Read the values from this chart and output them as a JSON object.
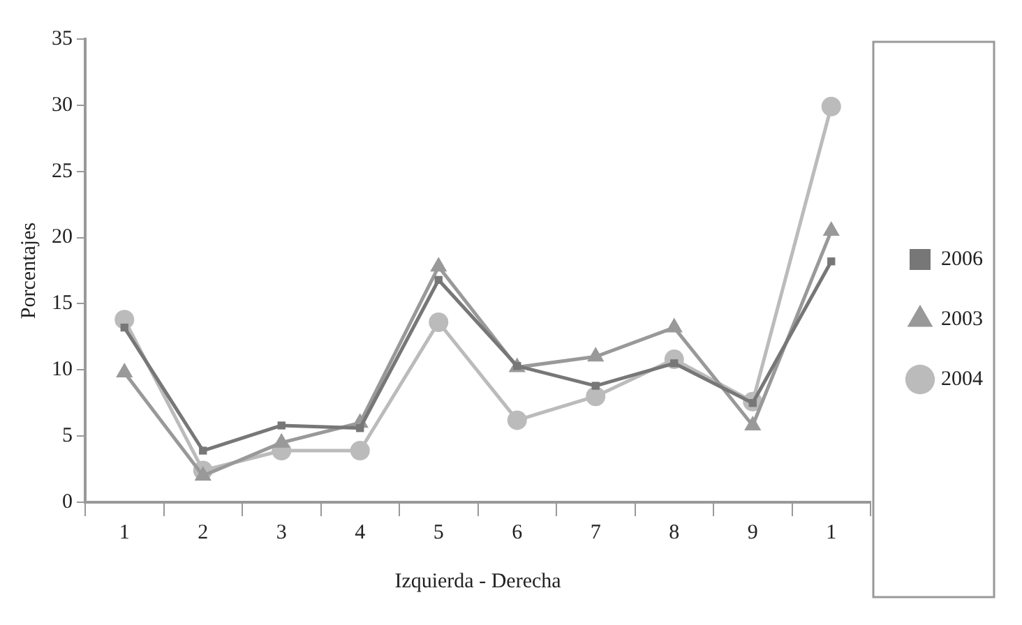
{
  "chart_data": {
    "type": "line",
    "xlabel": "Izquierda - Derecha",
    "ylabel": "Porcentajes",
    "categories": [
      "1",
      "2",
      "3",
      "4",
      "5",
      "6",
      "7",
      "8",
      "9",
      "1"
    ],
    "series": [
      {
        "name": "2003",
        "color": "#999999",
        "marker": "triangle",
        "values": [
          9.8,
          2,
          4.5,
          6,
          17.8,
          10.2,
          11,
          13.2,
          5.8,
          20.5
        ]
      },
      {
        "name": "2004",
        "color": "#bbbbbb",
        "marker": "circle",
        "values": [
          13.8,
          2.4,
          3.9,
          3.9,
          13.6,
          6.2,
          8,
          10.8,
          7.6,
          29.9
        ]
      },
      {
        "name": "2006",
        "color": "#777777",
        "marker": "square",
        "values": [
          13.2,
          3.9,
          5.8,
          5.6,
          16.8,
          10.3,
          8.8,
          10.5,
          7.5,
          18.2
        ]
      }
    ],
    "ylim": [
      0,
      35
    ],
    "yticks": [
      0,
      5,
      10,
      15,
      20,
      25,
      30,
      35
    ],
    "grid": false,
    "legend": "right"
  }
}
